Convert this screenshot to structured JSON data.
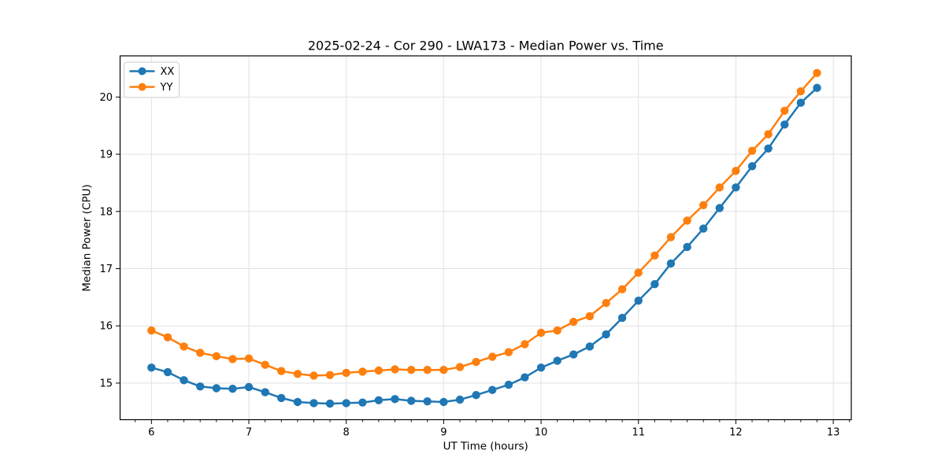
{
  "window": {
    "title": "2025-02-24 - Cor 290 - LWA173 - Median Power vs. Time"
  },
  "colors": {
    "series_xx": "#1f77b4",
    "series_yy": "#ff7f0e",
    "grid": "#e2e2e2",
    "spine": "#000000",
    "text": "#000000",
    "legend_border": "#cccccc",
    "legend_bg": "rgba(255,255,255,0.85)"
  },
  "chart_data": {
    "type": "line",
    "title": "2025-02-24 - Cor 290 - LWA173 - Median Power vs. Time",
    "xlabel": "UT Time (hours)",
    "ylabel": "Median Power (CPU)",
    "grid": true,
    "legend_position": "upper-left",
    "marker": "circle",
    "xlim": [
      5.678,
      13.185
    ],
    "ylim": [
      14.36,
      20.72
    ],
    "x_ticks": [
      6,
      7,
      8,
      9,
      10,
      11,
      12,
      13
    ],
    "x_tick_labels": [
      "6",
      "7",
      "8",
      "9",
      "10",
      "11",
      "12",
      "13"
    ],
    "x_minor_step": 0.1667,
    "y_ticks": [
      15,
      16,
      17,
      18,
      19,
      20
    ],
    "y_tick_labels": [
      "15",
      "16",
      "17",
      "18",
      "19",
      "20"
    ],
    "x": [
      6.0,
      6.167,
      6.333,
      6.5,
      6.667,
      6.833,
      7.0,
      7.167,
      7.333,
      7.5,
      7.667,
      7.833,
      8.0,
      8.167,
      8.333,
      8.5,
      8.667,
      8.833,
      9.0,
      9.167,
      9.333,
      9.5,
      9.667,
      9.833,
      10.0,
      10.167,
      10.333,
      10.5,
      10.667,
      10.833,
      11.0,
      11.167,
      11.333,
      11.5,
      11.667,
      11.833,
      12.0,
      12.167,
      12.333,
      12.5,
      12.667,
      12.833
    ],
    "series": [
      {
        "name": "XX",
        "color": "#1f77b4",
        "values": [
          15.27,
          15.19,
          15.05,
          14.94,
          14.91,
          14.9,
          14.93,
          14.84,
          14.74,
          14.67,
          14.65,
          14.64,
          14.65,
          14.66,
          14.7,
          14.72,
          14.69,
          14.68,
          14.67,
          14.71,
          14.79,
          14.88,
          14.97,
          15.1,
          15.27,
          15.39,
          15.5,
          15.64,
          15.85,
          16.14,
          16.44,
          16.73,
          17.09,
          17.38,
          17.7,
          18.06,
          18.42,
          18.79,
          19.1,
          19.52,
          19.9,
          20.16
        ]
      },
      {
        "name": "YY",
        "color": "#ff7f0e",
        "values": [
          15.92,
          15.8,
          15.64,
          15.53,
          15.47,
          15.42,
          15.43,
          15.32,
          15.21,
          15.16,
          15.13,
          15.14,
          15.18,
          15.2,
          15.22,
          15.24,
          15.23,
          15.23,
          15.23,
          15.28,
          15.37,
          15.46,
          15.54,
          15.68,
          15.88,
          15.92,
          16.07,
          16.17,
          16.4,
          16.64,
          16.93,
          17.23,
          17.55,
          17.84,
          18.11,
          18.42,
          18.71,
          19.06,
          19.35,
          19.76,
          20.1,
          20.42
        ]
      }
    ]
  }
}
